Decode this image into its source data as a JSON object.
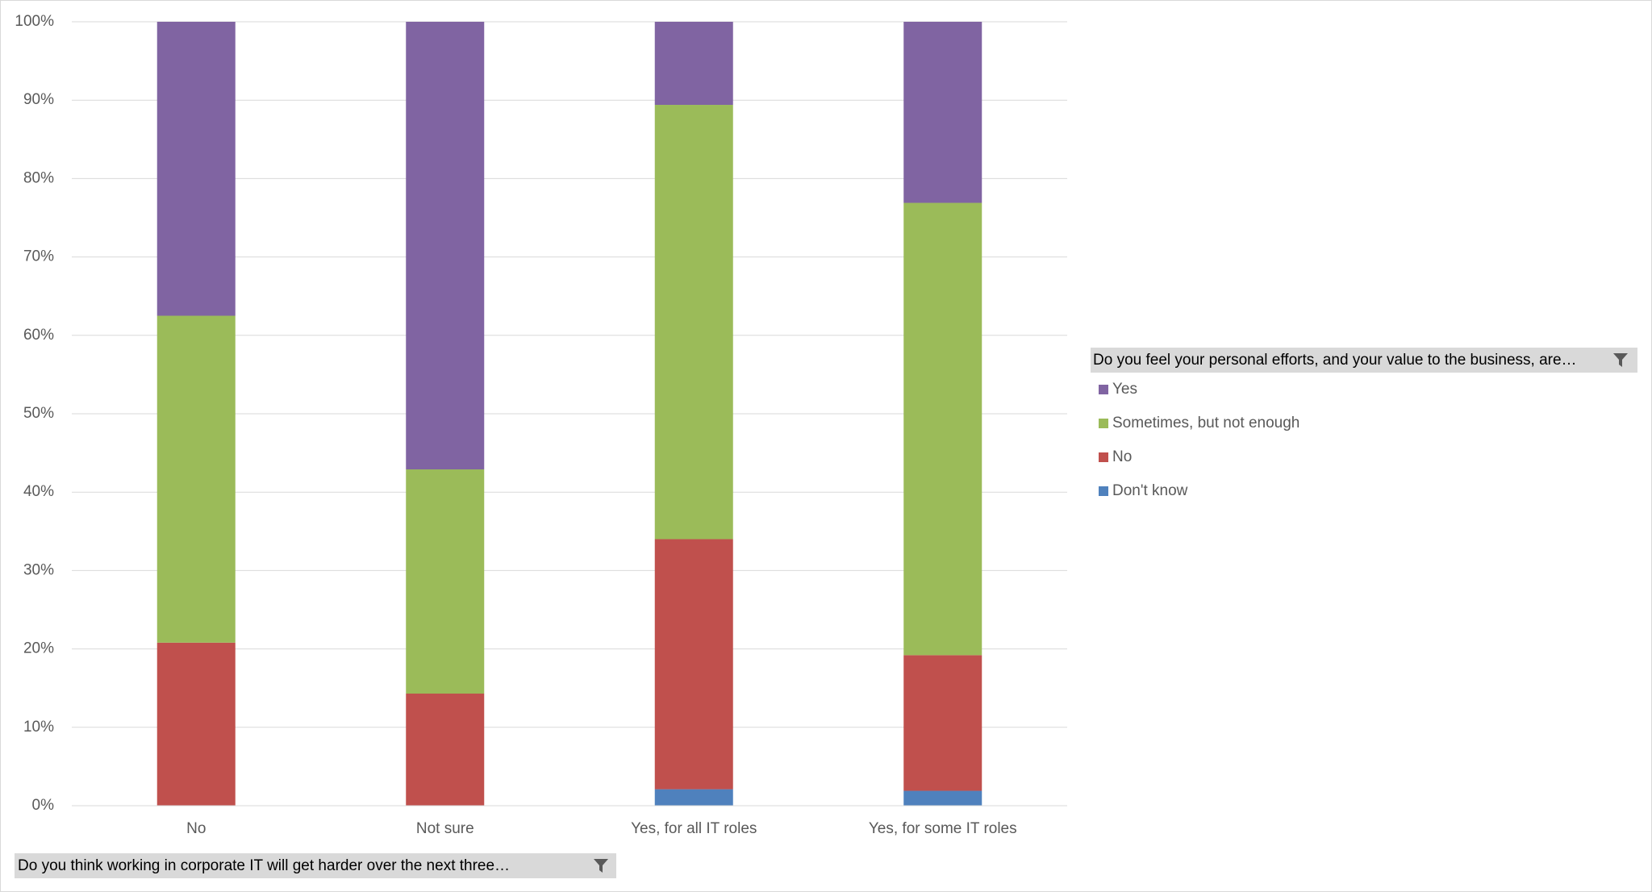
{
  "chart_data": {
    "type": "bar",
    "stacked": true,
    "categories": [
      "No",
      "Not sure",
      "Yes, for all IT roles",
      "Yes, for some IT roles"
    ],
    "series": [
      {
        "name": "Don't know",
        "color": "#4f81bd",
        "values": [
          0,
          0,
          2.1,
          1.9
        ]
      },
      {
        "name": "No",
        "color": "#c0504d",
        "values": [
          20.8,
          14.3,
          31.9,
          17.3
        ]
      },
      {
        "name": "Sometimes, but not enough",
        "color": "#9bbb59",
        "values": [
          41.7,
          28.6,
          55.4,
          57.7
        ]
      },
      {
        "name": "Yes",
        "color": "#8064a2",
        "values": [
          37.5,
          57.1,
          10.6,
          23.1
        ]
      }
    ],
    "ylim": [
      0,
      100
    ],
    "yticks": [
      {
        "value": 0,
        "label": "0%"
      },
      {
        "value": 10,
        "label": "10%"
      },
      {
        "value": 20,
        "label": "20%"
      },
      {
        "value": 30,
        "label": "30%"
      },
      {
        "value": 40,
        "label": "40%"
      },
      {
        "value": 50,
        "label": "50%"
      },
      {
        "value": 60,
        "label": "60%"
      },
      {
        "value": 70,
        "label": "70%"
      },
      {
        "value": 80,
        "label": "80%"
      },
      {
        "value": 90,
        "label": "90%"
      },
      {
        "value": 100,
        "label": "100%"
      }
    ],
    "grid": true,
    "legend_title": "Do you feel your personal efforts, and your value to the business, are…",
    "axis_filter": "Do you think working in corporate IT will get harder over the next three…"
  }
}
